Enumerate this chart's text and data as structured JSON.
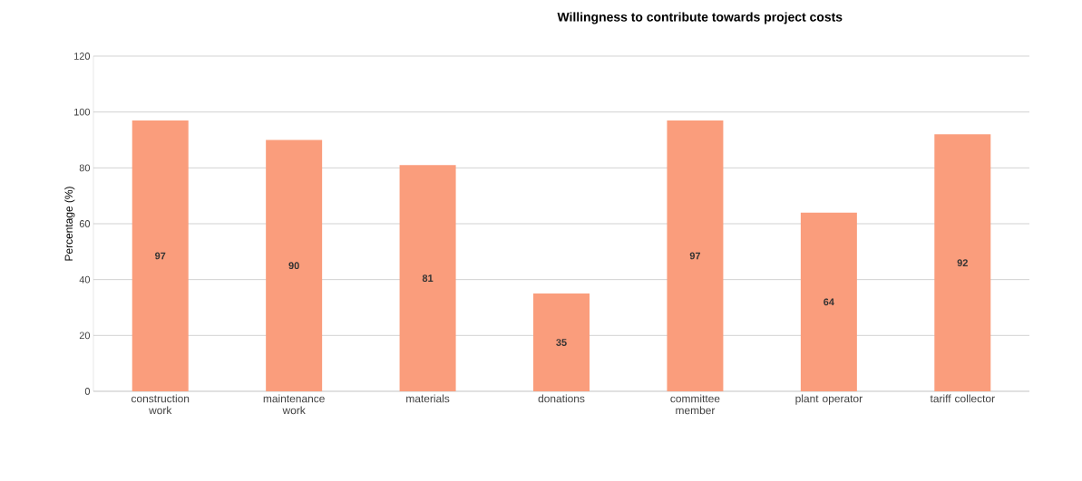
{
  "chart_data": {
    "type": "bar",
    "title": "Willingness to contribute towards project costs",
    "ylabel": "Percentage (%)",
    "categories": [
      "construction work",
      "maintenance work",
      "materials",
      "donations",
      "committee member",
      "plant operator",
      "tariff collector"
    ],
    "values": [
      97,
      90,
      81,
      35,
      97,
      64,
      92
    ],
    "value_labels": [
      "97",
      "90",
      "81",
      "35",
      "97",
      "64",
      "92"
    ],
    "color": "#fa9d7c",
    "ylim": [
      0,
      120
    ],
    "yticks": [
      0,
      20,
      40,
      60,
      80,
      100,
      120
    ],
    "grid": "y"
  }
}
